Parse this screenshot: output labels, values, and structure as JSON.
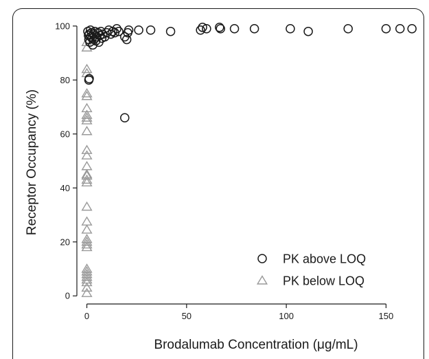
{
  "chart_data": {
    "type": "scatter",
    "title": "",
    "xlabel": "Brodalumab Concentration (μg/mL)",
    "ylabel": "Receptor Occupancy (%)",
    "xlim": [
      -5,
      165
    ],
    "ylim": [
      -3,
      102
    ],
    "x_ticks": [
      0,
      50,
      100,
      150
    ],
    "y_ticks": [
      0,
      20,
      40,
      60,
      80,
      100
    ],
    "grid": false,
    "legend_position": "bottom-right",
    "series": [
      {
        "name": "PK above LOQ",
        "marker": "circle",
        "color": "#1a1a1a",
        "points": [
          [
            0.5,
            98
          ],
          [
            0.8,
            96.5
          ],
          [
            1,
            95
          ],
          [
            1.2,
            97
          ],
          [
            1.5,
            94
          ],
          [
            1.8,
            98.5
          ],
          [
            2,
            96
          ],
          [
            2.3,
            97.5
          ],
          [
            2.6,
            95.5
          ],
          [
            3,
            93
          ],
          [
            3.3,
            97
          ],
          [
            3.6,
            95
          ],
          [
            4,
            98
          ],
          [
            4.5,
            94.5
          ],
          [
            5,
            96
          ],
          [
            5.5,
            97.5
          ],
          [
            6,
            94
          ],
          [
            6.5,
            96.5
          ],
          [
            7,
            98
          ],
          [
            7.5,
            95.5
          ],
          [
            8,
            97
          ],
          [
            9,
            96
          ],
          [
            10,
            97.5
          ],
          [
            11,
            98.5
          ],
          [
            12,
            97
          ],
          [
            13,
            98
          ],
          [
            14,
            97.5
          ],
          [
            15,
            99
          ],
          [
            16,
            98
          ],
          [
            19,
            96
          ],
          [
            20,
            95
          ],
          [
            20.5,
            97.5
          ],
          [
            21,
            98.5
          ],
          [
            26,
            98.5
          ],
          [
            32,
            98.5
          ],
          [
            42,
            98
          ],
          [
            57,
            98.5
          ],
          [
            58,
            99.5
          ],
          [
            60,
            99
          ],
          [
            66.5,
            99.5
          ],
          [
            67,
            99
          ],
          [
            74,
            99
          ],
          [
            84,
            99
          ],
          [
            102,
            99
          ],
          [
            111,
            98
          ],
          [
            131,
            99
          ],
          [
            150,
            99
          ],
          [
            157,
            99
          ],
          [
            163,
            99
          ],
          [
            1,
            80
          ],
          [
            1.2,
            80.5
          ],
          [
            19,
            66
          ]
        ]
      },
      {
        "name": "PK below LOQ",
        "marker": "triangle",
        "color": "#999999",
        "points": [
          [
            0,
            94
          ],
          [
            0,
            92
          ],
          [
            0,
            84
          ],
          [
            0,
            82.5
          ],
          [
            0,
            75
          ],
          [
            0,
            74
          ],
          [
            0,
            69.5
          ],
          [
            0,
            67
          ],
          [
            0,
            66
          ],
          [
            0,
            65
          ],
          [
            0,
            61
          ],
          [
            0,
            54
          ],
          [
            0,
            52
          ],
          [
            0,
            48
          ],
          [
            0,
            45
          ],
          [
            0,
            44.5
          ],
          [
            0,
            43
          ],
          [
            0,
            42
          ],
          [
            0,
            33
          ],
          [
            0,
            27.5
          ],
          [
            0,
            24.5
          ],
          [
            0,
            21
          ],
          [
            0,
            20
          ],
          [
            0,
            19
          ],
          [
            0,
            18
          ],
          [
            0,
            10
          ],
          [
            0,
            9
          ],
          [
            0,
            8
          ],
          [
            0,
            7
          ],
          [
            0,
            6
          ],
          [
            0,
            5
          ],
          [
            0,
            3
          ],
          [
            0,
            1
          ]
        ]
      }
    ]
  }
}
